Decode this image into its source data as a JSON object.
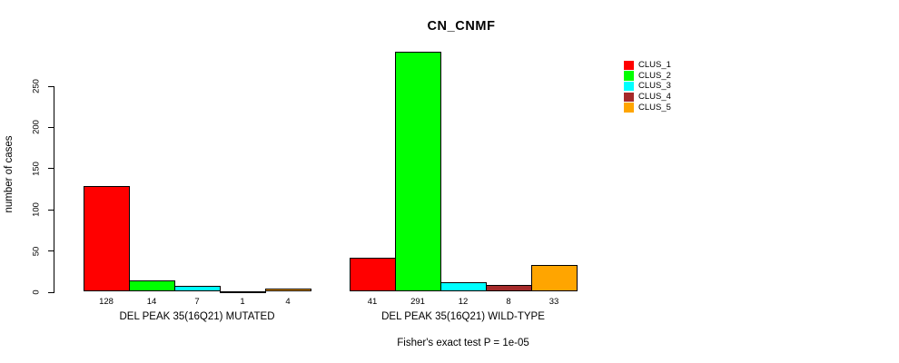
{
  "chart_data": {
    "type": "bar",
    "title": "CN_CNMF",
    "ylabel": "number of cases",
    "xlabel": "",
    "yticks": [
      0,
      50,
      100,
      150,
      200,
      250
    ],
    "axis_range": [
      0,
      250
    ],
    "grid": false,
    "legend_position": "right-outside",
    "bar_value_labels_shown": true,
    "categories": [
      "DEL PEAK 35(16Q21) MUTATED",
      "DEL PEAK 35(16Q21) WILD-TYPE"
    ],
    "series": [
      {
        "name": "CLUS_1",
        "color": "#FF0000",
        "values": [
          128,
          41
        ]
      },
      {
        "name": "CLUS_2",
        "color": "#00FF00",
        "values": [
          14,
          291
        ]
      },
      {
        "name": "CLUS_3",
        "color": "#00FFFF",
        "values": [
          7,
          12
        ]
      },
      {
        "name": "CLUS_4",
        "color": "#A52A2A",
        "values": [
          1,
          8
        ]
      },
      {
        "name": "CLUS_5",
        "color": "#FFA500",
        "values": [
          4,
          33
        ]
      }
    ],
    "footnote": "Fisher's exact test P = 1e-05",
    "colors": {
      "background": "#FFFFFF",
      "axis": "#000000",
      "bar_border": "#000000",
      "text": "#000000"
    }
  }
}
